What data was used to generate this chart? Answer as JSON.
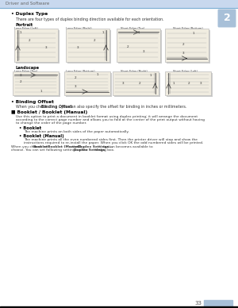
{
  "page_bg": "#ffffff",
  "header_bg": "#c8d8ee",
  "header_line_color": "#7bafd4",
  "header_text": "Driver and Software",
  "header_text_color": "#666666",
  "badge_bg": "#a8c0d8",
  "badge_text": "2",
  "badge_text_color": "#ffffff",
  "footer_text": "33",
  "footer_bar_color": "#a8c0d8",
  "footer_text_color": "#555555",
  "body_text_color": "#333333",
  "diagram_bg": "#f0ece0",
  "diagram_bg2": "#ffffff",
  "diagram_border": "#bbbbbb",
  "diagram_line_color": "#aaaaaa",
  "diagram_shadow": "#cccccc",
  "portrait_cols": [
    "Long Edge (Left)",
    "Long Edge (Right)",
    "Short Edge (Top)",
    "Short Edge (Bottom)"
  ],
  "landscape_cols": [
    "Long Edge (Top)",
    "Long Edge (Bottom)",
    "Short Edge (Right)",
    "Short Edge (Left)"
  ]
}
